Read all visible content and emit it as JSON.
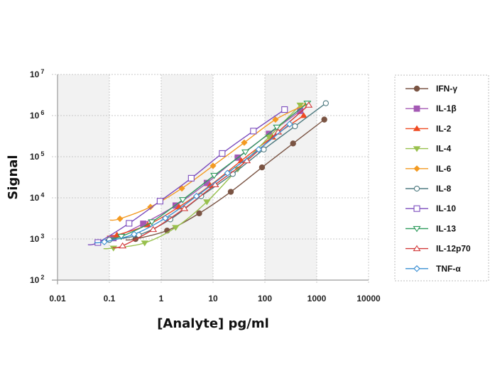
{
  "chart_data": {
    "type": "scatter",
    "title": "",
    "xlabel": "[Analyte] pg/ml",
    "ylabel": "Signal",
    "xscale": "log",
    "yscale": "log",
    "xlim": [
      0.01,
      10000
    ],
    "ylim": [
      100,
      10000000
    ],
    "x_ticks": [
      "0.01",
      "0.1",
      "1",
      "10",
      "100",
      "1000",
      "10000"
    ],
    "y_ticks": [
      {
        "base": "10",
        "exp": "2"
      },
      {
        "base": "10",
        "exp": "3"
      },
      {
        "base": "10",
        "exp": "4"
      },
      {
        "base": "10",
        "exp": "5"
      },
      {
        "base": "10",
        "exp": "6"
      },
      {
        "base": "10",
        "exp": "7"
      }
    ],
    "grid": true,
    "legend_position": "right",
    "series": [
      {
        "name": "IFN-γ",
        "color": "#7a5443",
        "marker": "circle-filled",
        "x": [
          0.32,
          1.3,
          5.4,
          22,
          88,
          350,
          1400
        ],
        "y": [
          1000,
          1600,
          4200,
          14000,
          55000,
          210000,
          800000
        ]
      },
      {
        "name": "IL-1β",
        "color": "#a459b4",
        "marker": "square-filled",
        "x": [
          0.12,
          0.45,
          1.9,
          7.6,
          30,
          120,
          480
        ],
        "y": [
          1050,
          2350,
          6500,
          23000,
          95000,
          360000,
          1300000
        ]
      },
      {
        "name": "IL-2",
        "color": "#ef4a21",
        "marker": "triangle-filled",
        "x": [
          0.14,
          0.55,
          2.2,
          8.8,
          35,
          140,
          560
        ],
        "y": [
          1250,
          2200,
          6000,
          20000,
          80000,
          300000,
          1000000
        ]
      },
      {
        "name": "IL-4",
        "color": "#98c04d",
        "marker": "triangle-down-filled",
        "x": [
          0.12,
          0.48,
          1.9,
          7.6,
          30,
          120,
          480
        ],
        "y": [
          600,
          800,
          1900,
          8000,
          50000,
          300000,
          1800000
        ]
      },
      {
        "name": "IL-6",
        "color": "#f39a22",
        "marker": "diamond-filled",
        "x": [
          0.16,
          0.62,
          2.5,
          10,
          40,
          160,
          640
        ],
        "y": [
          3100,
          6000,
          17000,
          60000,
          220000,
          800000,
          1900000
        ]
      },
      {
        "name": "IL-8",
        "color": "#4e7a80",
        "marker": "circle-open",
        "x": [
          0.1,
          0.37,
          1.5,
          5.9,
          24,
          95,
          380,
          1500
        ],
        "y": [
          950,
          1250,
          3000,
          11000,
          38000,
          150000,
          550000,
          2000000
        ]
      },
      {
        "name": "IL-10",
        "color": "#7b4bbd",
        "marker": "square-open",
        "x": [
          0.06,
          0.24,
          0.95,
          3.8,
          15,
          60,
          240
        ],
        "y": [
          820,
          2400,
          8300,
          30000,
          120000,
          420000,
          1400000
        ]
      },
      {
        "name": "IL-13",
        "color": "#2d9a5c",
        "marker": "triangle-down-open",
        "x": [
          0.17,
          0.66,
          2.6,
          10.5,
          42,
          170,
          660
        ],
        "y": [
          1150,
          2600,
          9000,
          35000,
          130000,
          520000,
          2000000
        ]
      },
      {
        "name": "IL-12p70",
        "color": "#d23b3b",
        "marker": "triangle-open",
        "x": [
          0.18,
          0.7,
          2.8,
          11,
          45,
          180,
          700
        ],
        "y": [
          680,
          1700,
          5500,
          21000,
          80000,
          400000,
          1800000
        ]
      },
      {
        "name": "TNF-α",
        "color": "#3a8fd3",
        "marker": "diamond-open",
        "x": [
          0.08,
          0.3,
          1.2,
          4.8,
          19,
          76,
          300
        ],
        "y": [
          850,
          1300,
          3200,
          11000,
          40000,
          150000,
          620000
        ]
      }
    ]
  }
}
